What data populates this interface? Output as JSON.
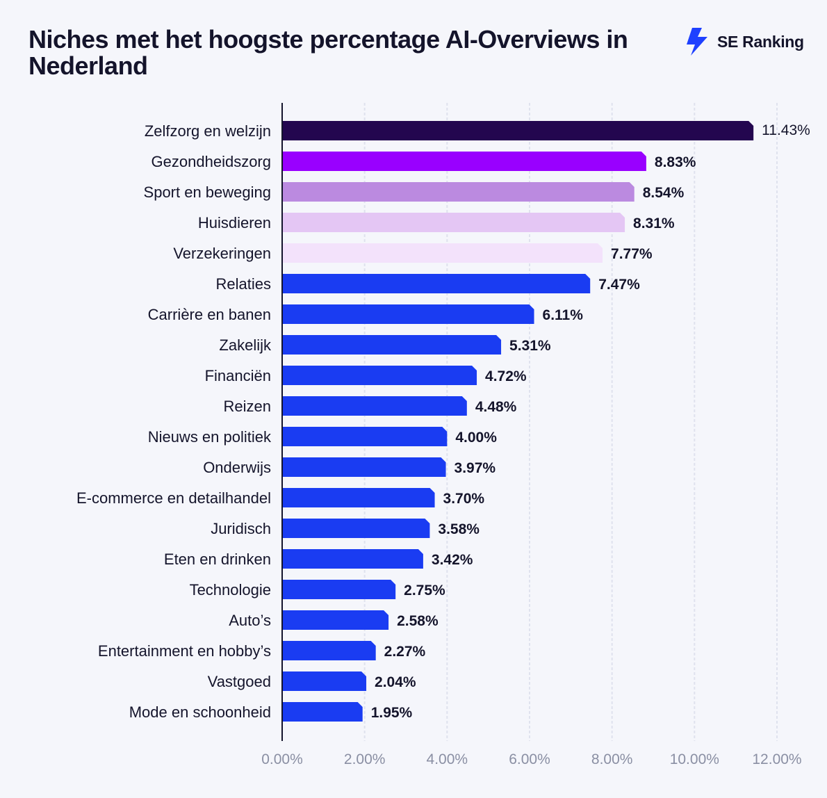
{
  "title": "Niches met het hoogste percentage AI-Overviews in Nederland",
  "brand": {
    "name": "SE Ranking",
    "icon": "lightning-bolt-icon",
    "color": "#1e40ff"
  },
  "chart_data": {
    "type": "bar",
    "orientation": "horizontal",
    "title": "Niches met het hoogste percentage AI-Overviews in Nederland",
    "xlabel": "",
    "ylabel": "",
    "xlim": [
      0,
      12
    ],
    "grid": "vertical",
    "legend": "none",
    "categories": [
      "Zelfzorg en welzijn",
      "Gezondheidszorg",
      "Sport en beweging",
      "Huisdieren",
      "Verzekeringen",
      "Relaties",
      "Carrière en banen",
      "Zakelijk",
      "Financiën",
      "Reizen",
      "Nieuws en politiek",
      "Onderwijs",
      "E-commerce en detailhandel",
      "Juridisch",
      "Eten en drinken",
      "Technologie",
      "Auto’s",
      "Entertainment en hobby’s",
      "Vastgoed",
      "Mode en schoonheid"
    ],
    "values": [
      11.43,
      8.83,
      8.54,
      8.31,
      7.77,
      7.47,
      6.11,
      5.31,
      4.72,
      4.48,
      4.0,
      3.97,
      3.7,
      3.58,
      3.42,
      2.75,
      2.58,
      2.27,
      2.04,
      1.95
    ],
    "value_labels": [
      "11.43%",
      "8.83%",
      "8.54%",
      "8.31%",
      "7.77%",
      "7.47%",
      "6.11%",
      "5.31%",
      "4.72%",
      "4.48%",
      "4.00%",
      "3.97%",
      "3.70%",
      "3.58%",
      "3.42%",
      "2.75%",
      "2.58%",
      "2.27%",
      "2.04%",
      "1.95%"
    ],
    "x_ticks": [
      0,
      2,
      4,
      6,
      8,
      10,
      12
    ],
    "x_tick_labels": [
      "0.00%",
      "2.00%",
      "4.00%",
      "6.00%",
      "8.00%",
      "10.00%",
      "12.00%"
    ],
    "bar_colors": [
      "#23064f",
      "#9900ff",
      "#bb8ae0",
      "#e4c6f4",
      "#f3e2fb",
      "#1a3cf2",
      "#1a3cf2",
      "#1a3cf2",
      "#1a3cf2",
      "#1a3cf2",
      "#1a3cf2",
      "#1a3cf2",
      "#1a3cf2",
      "#1a3cf2",
      "#1a3cf2",
      "#1a3cf2",
      "#1a3cf2",
      "#1a3cf2",
      "#1a3cf2",
      "#1a3cf2"
    ],
    "grid_color": "#dfe2ee",
    "axis_color": "#14142b"
  }
}
